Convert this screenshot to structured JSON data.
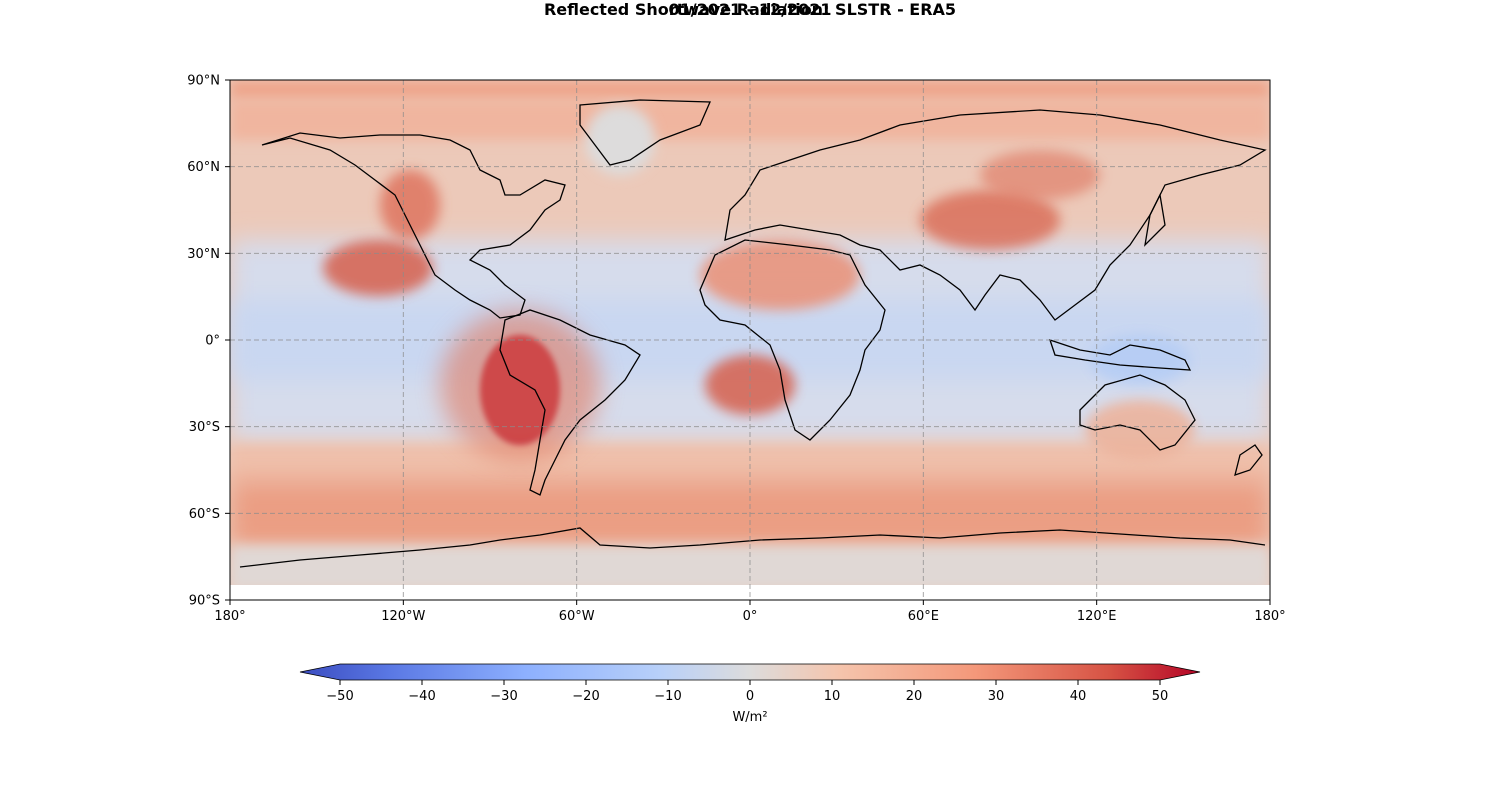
{
  "title": "Reflected Shortwave Radiation: SLSTR - ERA5",
  "subtitle": "01/2021 - 12/2021",
  "chart_data": {
    "type": "heatmap",
    "projection": "PlateCarree",
    "variable": "Reflected shortwave radiation difference (SLSTR - ERA5)",
    "lon_range": [
      -180,
      180
    ],
    "lat_range": [
      -90,
      90
    ],
    "x_ticks": [
      "180°",
      "120°W",
      "60°W",
      "0°",
      "60°E",
      "120°E",
      "180°"
    ],
    "y_ticks": [
      "90°N",
      "60°N",
      "30°N",
      "0°",
      "30°S",
      "60°S",
      "90°S"
    ],
    "gridlines": true,
    "colormap": "coolwarm",
    "colorbar": {
      "label": "W/m²",
      "range": [
        -50,
        50
      ],
      "ticks": [
        "−50",
        "−40",
        "−30",
        "−20",
        "−10",
        "0",
        "10",
        "20",
        "30",
        "40",
        "50"
      ],
      "extend": "both",
      "orientation": "horizontal"
    },
    "colors": {
      "deep_blue": "#3b4cc0",
      "light_blue": "#c6d6f2",
      "neutral": "#dddcdc",
      "light_red": "#f2b7a0",
      "mid_red": "#e58a6e",
      "deep_red": "#b40426"
    },
    "regions": [
      {
        "name": "Peru/Chile stratocumulus deck",
        "lon": -80,
        "lat": -18,
        "value": 55
      },
      {
        "name": "California stratocumulus",
        "lon": -125,
        "lat": 25,
        "value": 32
      },
      {
        "name": "Namibia stratocumulus",
        "lon": 5,
        "lat": -15,
        "value": 30
      },
      {
        "name": "Sahara",
        "lon": 10,
        "lat": 20,
        "value": 25
      },
      {
        "name": "Tibetan Plateau",
        "lon": 85,
        "lat": 35,
        "value": 40
      },
      {
        "name": "Southern Ocean",
        "lon": 0,
        "lat": -55,
        "value": 25
      },
      {
        "name": "Equatorial Pacific",
        "lon": -150,
        "lat": 0,
        "value": -12
      },
      {
        "name": "Western Pacific warm pool",
        "lon": 140,
        "lat": 10,
        "value": -12
      },
      {
        "name": "Greenland",
        "lon": -40,
        "lat": 72,
        "value": 0
      },
      {
        "name": "Antarctica",
        "lon": 0,
        "lat": -80,
        "value": 0
      }
    ]
  }
}
